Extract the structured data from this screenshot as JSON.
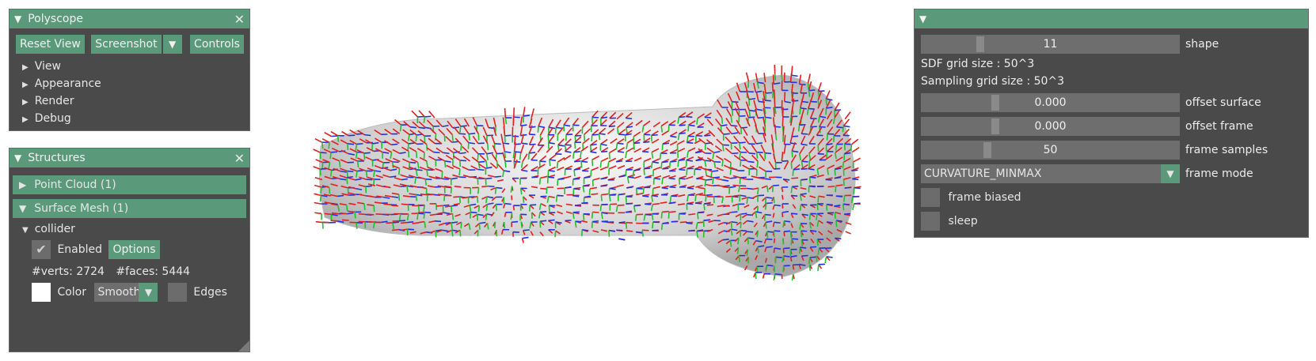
{
  "colors": {
    "accent": "#5a9a7a",
    "panel_bg": "#4a4a4a",
    "frame_red": "#e02020",
    "frame_green": "#20c030",
    "frame_blue": "#2030e0",
    "mesh": "#d8d8d8"
  },
  "polyscope": {
    "title": "Polyscope",
    "buttons": {
      "reset_view": "Reset View",
      "screenshot": "Screenshot",
      "controls": "Controls"
    },
    "menu": [
      "View",
      "Appearance",
      "Render",
      "Debug"
    ]
  },
  "structures": {
    "title": "Structures",
    "point_cloud": "Point Cloud (1)",
    "surface_mesh": "Surface Mesh (1)",
    "collider": {
      "name": "collider",
      "enabled_label": "Enabled",
      "options_label": "Options",
      "verts_label": "#verts: 2724",
      "faces_label": "#faces: 5444",
      "color_label": "Color",
      "shading_value": "Smooth",
      "edges_label": "Edges"
    }
  },
  "controls_panel": {
    "shape": {
      "value": "11",
      "label": "shape",
      "level": 0.22
    },
    "sdf_grid": "SDF grid size : 50^3",
    "sampling_grid": "Sampling grid size : 50^3",
    "offset_surface": {
      "value": "0.000",
      "label": "offset surface",
      "level": 0.28
    },
    "offset_frame": {
      "value": "0.000",
      "label": "offset frame",
      "level": 0.28
    },
    "frame_samples": {
      "value": "50",
      "label": "frame samples",
      "level": 0.25
    },
    "frame_mode": {
      "value": "CURVATURE_MINMAX",
      "label": "frame mode"
    },
    "frame_biased": "frame biased",
    "sleep": "sleep"
  }
}
